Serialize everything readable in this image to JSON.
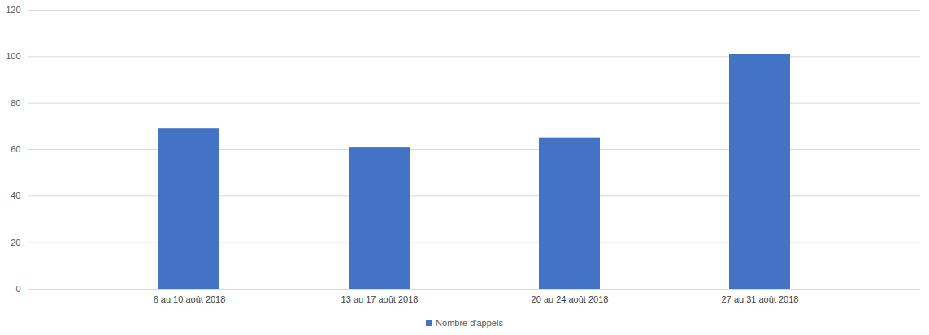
{
  "chart_data": {
    "type": "bar",
    "categories": [
      "6 au 10 août 2018",
      "13 au 17 août 2018",
      "20 au 24 août 2018",
      "27 au 31 août 2018"
    ],
    "series": [
      {
        "name": "Nombre d'appels",
        "color": "#4472c4",
        "values": [
          69,
          61,
          65,
          101
        ]
      }
    ],
    "ylim": [
      0,
      120
    ],
    "yticks": [
      0,
      20,
      40,
      60,
      80,
      100,
      120
    ],
    "grid": true,
    "legend": "bottom"
  }
}
